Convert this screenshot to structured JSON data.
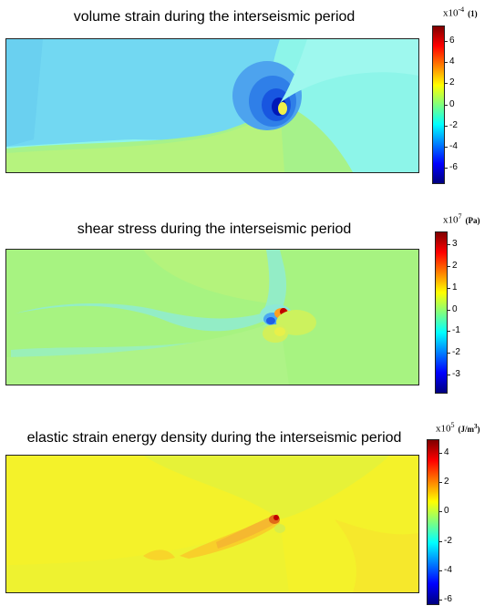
{
  "panels": [
    {
      "title": "volume strain during the interseismic period",
      "colorbar": {
        "multiplier_base": "x10",
        "exponent": "-4",
        "unit_main": "(1)",
        "unit_sup": "",
        "ticks": [
          "6",
          "4",
          "2",
          "0",
          "-2",
          "-4",
          "-6"
        ]
      }
    },
    {
      "title": "shear stress during the interseismic period",
      "colorbar": {
        "multiplier_base": "x10",
        "exponent": "7",
        "unit_main": "(Pa)",
        "unit_sup": "",
        "ticks": [
          "3",
          "2",
          "1",
          "0",
          "-1",
          "-2",
          "-3"
        ]
      }
    },
    {
      "title": "elastic strain energy density during the interseismic period",
      "colorbar": {
        "multiplier_base": "x10",
        "exponent": "5",
        "unit_main": "(J/m",
        "unit_sup": "3",
        "unit_close": ")",
        "ticks": [
          "4",
          "2",
          "0",
          "-2",
          "-4",
          "-6"
        ]
      }
    }
  ],
  "colors": {
    "jet": [
      "#00007f",
      "#0000ff",
      "#007fff",
      "#00ffff",
      "#7fff7f",
      "#ffff00",
      "#ff7f00",
      "#ff0000",
      "#7f0000"
    ]
  }
}
